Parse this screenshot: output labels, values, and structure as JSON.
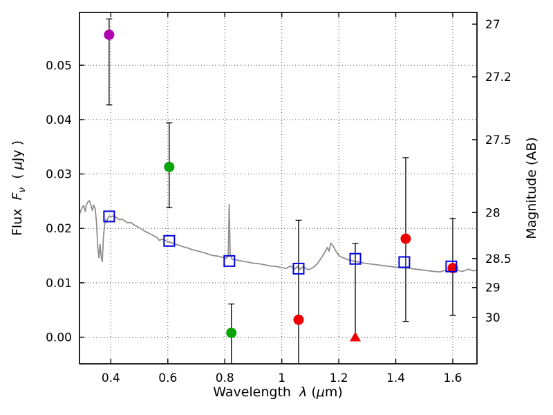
{
  "labels": {
    "xlabel": {
      "pre": "Wavelength  ",
      "lambda": "λ",
      "mid": " (",
      "mu": "μ",
      "post": "m)"
    },
    "ylabel_left": {
      "pre": "Flux  ",
      "f": "F",
      "nu": "ν",
      "mid": "  ( ",
      "mu": "μ",
      "post": "Jy )"
    },
    "ylabel_right": "Magnitude (AB)"
  },
  "chart_data": {
    "type": "scatter",
    "title": "",
    "xlabel": "Wavelength λ (μm)",
    "ylabel_left": "Flux Fν (μJy)",
    "ylabel_right": "Magnitude (AB)",
    "xlim": [
      0.29,
      1.685
    ],
    "ylim": [
      -0.0049,
      0.0597
    ],
    "grid": true,
    "x_ticks": [
      0.4,
      0.6,
      0.8,
      1,
      1.2,
      1.4,
      1.6
    ],
    "x_tick_labels": [
      "0.4",
      "0.6",
      "0.8",
      "1",
      "1.2",
      "1.4",
      "1.6"
    ],
    "y_ticks_left": [
      0,
      0.01,
      0.02,
      0.03,
      0.04,
      0.05
    ],
    "y_tick_labels_left": [
      "0.00",
      "0.01",
      "0.02",
      "0.03",
      "0.04",
      "0.05"
    ],
    "y_ticks_right_mag": [
      27,
      27.2,
      27.5,
      28,
      28.5,
      29,
      30
    ],
    "y_tick_labels_right": [
      "27",
      "27.2",
      "27.5",
      "28",
      "28.5",
      "29",
      "30"
    ],
    "mag_flux_zeropoint": 23.9,
    "colors": {
      "magenta": "#b000b0",
      "green": "#0aa40a",
      "red": "#ee0000",
      "blue": "#0000e0",
      "gray": "#8f8f8f",
      "errorbar": "#000000"
    },
    "spectrum": {
      "name": "model spectrum",
      "x": [
        0.29,
        0.295,
        0.3,
        0.305,
        0.31,
        0.315,
        0.32,
        0.325,
        0.33,
        0.335,
        0.34,
        0.345,
        0.35,
        0.354,
        0.358,
        0.362,
        0.366,
        0.37,
        0.374,
        0.378,
        0.382,
        0.386,
        0.39,
        0.395,
        0.4,
        0.41,
        0.42,
        0.43,
        0.44,
        0.45,
        0.46,
        0.47,
        0.48,
        0.49,
        0.5,
        0.515,
        0.53,
        0.545,
        0.56,
        0.57,
        0.58,
        0.595,
        0.61,
        0.625,
        0.64,
        0.655,
        0.67,
        0.685,
        0.7,
        0.715,
        0.73,
        0.745,
        0.76,
        0.775,
        0.79,
        0.805,
        0.812,
        0.8155,
        0.819,
        0.826,
        0.84,
        0.86,
        0.88,
        0.9,
        0.92,
        0.94,
        0.96,
        0.98,
        1.0,
        1.015,
        1.03,
        1.045,
        1.055,
        1.065,
        1.075,
        1.085,
        1.095,
        1.11,
        1.125,
        1.14,
        1.15,
        1.16,
        1.166,
        1.172,
        1.18,
        1.19,
        1.2,
        1.215,
        1.23,
        1.25,
        1.27,
        1.29,
        1.32,
        1.35,
        1.38,
        1.41,
        1.44,
        1.47,
        1.5,
        1.53,
        1.555,
        1.575,
        1.595,
        1.615,
        1.635,
        1.655,
        1.67,
        1.685
      ],
      "y": [
        0.0226,
        0.0233,
        0.0239,
        0.0242,
        0.0231,
        0.0244,
        0.0249,
        0.0251,
        0.0243,
        0.0233,
        0.0243,
        0.0236,
        0.021,
        0.0166,
        0.0146,
        0.0171,
        0.0148,
        0.0139,
        0.0183,
        0.0207,
        0.0216,
        0.0211,
        0.0219,
        0.0223,
        0.0221,
        0.0223,
        0.022,
        0.0216,
        0.0217,
        0.0213,
        0.021,
        0.0211,
        0.0207,
        0.0204,
        0.0201,
        0.0196,
        0.0192,
        0.0188,
        0.0184,
        0.0178,
        0.018,
        0.0177,
        0.0174,
        0.0171,
        0.0169,
        0.0166,
        0.0164,
        0.0161,
        0.0159,
        0.0157,
        0.0155,
        0.0152,
        0.015,
        0.0149,
        0.0147,
        0.0145,
        0.0149,
        0.0244,
        0.0151,
        0.0143,
        0.0142,
        0.014,
        0.0138,
        0.0136,
        0.0135,
        0.0133,
        0.0131,
        0.013,
        0.0128,
        0.0126,
        0.0131,
        0.0125,
        0.013,
        0.0125,
        0.013,
        0.0126,
        0.0124,
        0.0128,
        0.0135,
        0.0147,
        0.0155,
        0.0165,
        0.0158,
        0.0173,
        0.0168,
        0.0158,
        0.015,
        0.0146,
        0.0143,
        0.014,
        0.0138,
        0.0136,
        0.0134,
        0.0132,
        0.013,
        0.0128,
        0.0127,
        0.0125,
        0.0123,
        0.0121,
        0.012,
        0.0123,
        0.012,
        0.0123,
        0.0121,
        0.0125,
        0.0122,
        0.0123
      ]
    },
    "model_photometry": {
      "name": "model photometry",
      "marker": "open-square",
      "points": [
        [
          0.394,
          0.0222
        ],
        [
          0.605,
          0.0177
        ],
        [
          0.816,
          0.014
        ],
        [
          1.059,
          0.0126
        ],
        [
          1.258,
          0.0144
        ],
        [
          1.43,
          0.0138
        ],
        [
          1.595,
          0.013
        ]
      ]
    },
    "observations": [
      {
        "x": 0.394,
        "y": 0.0556,
        "lo": 0.0427,
        "hi": 0.0585,
        "cap_lo": true,
        "cap_hi": true,
        "marker": "circle",
        "color": "magenta"
      },
      {
        "x": 0.605,
        "y": 0.0313,
        "lo": 0.0238,
        "hi": 0.0394,
        "cap_lo": true,
        "cap_hi": true,
        "marker": "circle",
        "color": "green"
      },
      {
        "x": 0.823,
        "y": 0.0008,
        "lo": -0.0049,
        "hi": 0.0061,
        "cap_lo": false,
        "cap_hi": true,
        "marker": "circle",
        "color": "green"
      },
      {
        "x": 1.059,
        "y": 0.0032,
        "lo": -0.0049,
        "hi": 0.0215,
        "cap_lo": false,
        "cap_hi": true,
        "marker": "circle",
        "color": "red"
      },
      {
        "x": 1.258,
        "y": 0.0,
        "lo": 0.0,
        "hi": 0.0172,
        "cap_lo": false,
        "cap_hi": true,
        "marker": "triangle-up",
        "color": "red"
      },
      {
        "x": 1.435,
        "y": 0.0181,
        "lo": 0.0029,
        "hi": 0.033,
        "cap_lo": true,
        "cap_hi": true,
        "marker": "circle",
        "color": "red"
      },
      {
        "x": 1.6,
        "y": 0.0127,
        "lo": 0.004,
        "hi": 0.0218,
        "cap_lo": true,
        "cap_hi": true,
        "marker": "circle",
        "color": "red"
      }
    ]
  }
}
